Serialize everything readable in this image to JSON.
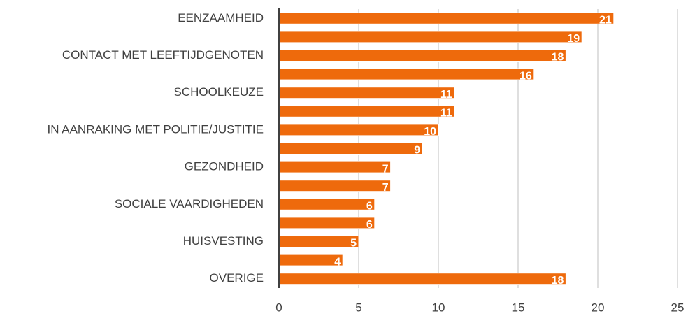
{
  "chart_data": {
    "type": "barh",
    "categories": [
      "EENZAAMHEID",
      null,
      "CONTACT MET LEEFTIJDGENOTEN",
      null,
      "SCHOOLKEUZE",
      null,
      "IN AANRAKING MET POLITIE/JUSTITIE",
      null,
      "GEZONDHEID",
      null,
      "SOCIALE VAARDIGHEDEN",
      null,
      "HUISVESTING",
      null,
      "OVERIGE"
    ],
    "values": [
      21,
      19,
      18,
      16,
      11,
      11,
      10,
      9,
      7,
      7,
      6,
      6,
      5,
      4,
      18
    ],
    "color": "#ee6a0c",
    "xlim": [
      0,
      25
    ],
    "xticks": [
      0,
      5,
      10,
      15,
      20,
      25
    ],
    "grid": true
  }
}
